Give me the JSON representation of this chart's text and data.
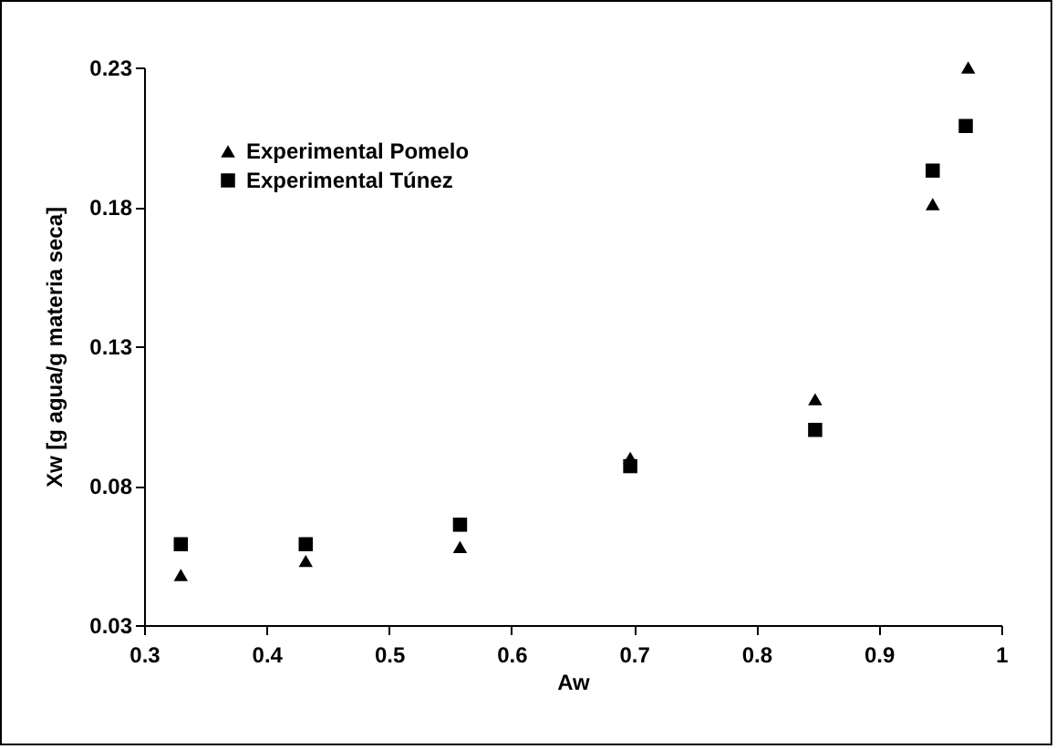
{
  "chart_data": {
    "type": "scatter",
    "xlabel": "Aw",
    "ylabel": "Xw  [g agua/g materia seca]",
    "series": [
      {
        "name": "Experimental Pomelo",
        "color": "#000000",
        "marker": "triangle",
        "x": [
          0.33,
          0.432,
          0.558,
          0.697,
          0.848,
          0.944,
          0.973
        ],
        "values": [
          0.048,
          0.053,
          0.058,
          0.09,
          0.111,
          0.181,
          0.23
        ]
      },
      {
        "name": "Experimental Túnez",
        "color": "#000000",
        "marker": "square",
        "x": [
          0.33,
          0.432,
          0.558,
          0.697,
          0.848,
          0.944,
          0.971
        ],
        "values": [
          0.059,
          0.059,
          0.066,
          0.087,
          0.1,
          0.193,
          0.209
        ]
      }
    ],
    "xlim": [
      0.3,
      1
    ],
    "xticks": [
      0.3,
      0.4,
      0.5,
      0.6,
      0.7,
      0.8,
      0.9,
      1
    ],
    "ylim": [
      0.03,
      0.23
    ],
    "yticks": [
      0.03,
      0.08,
      0.13,
      0.18,
      0.23
    ],
    "grid": false,
    "legend": "top left"
  }
}
